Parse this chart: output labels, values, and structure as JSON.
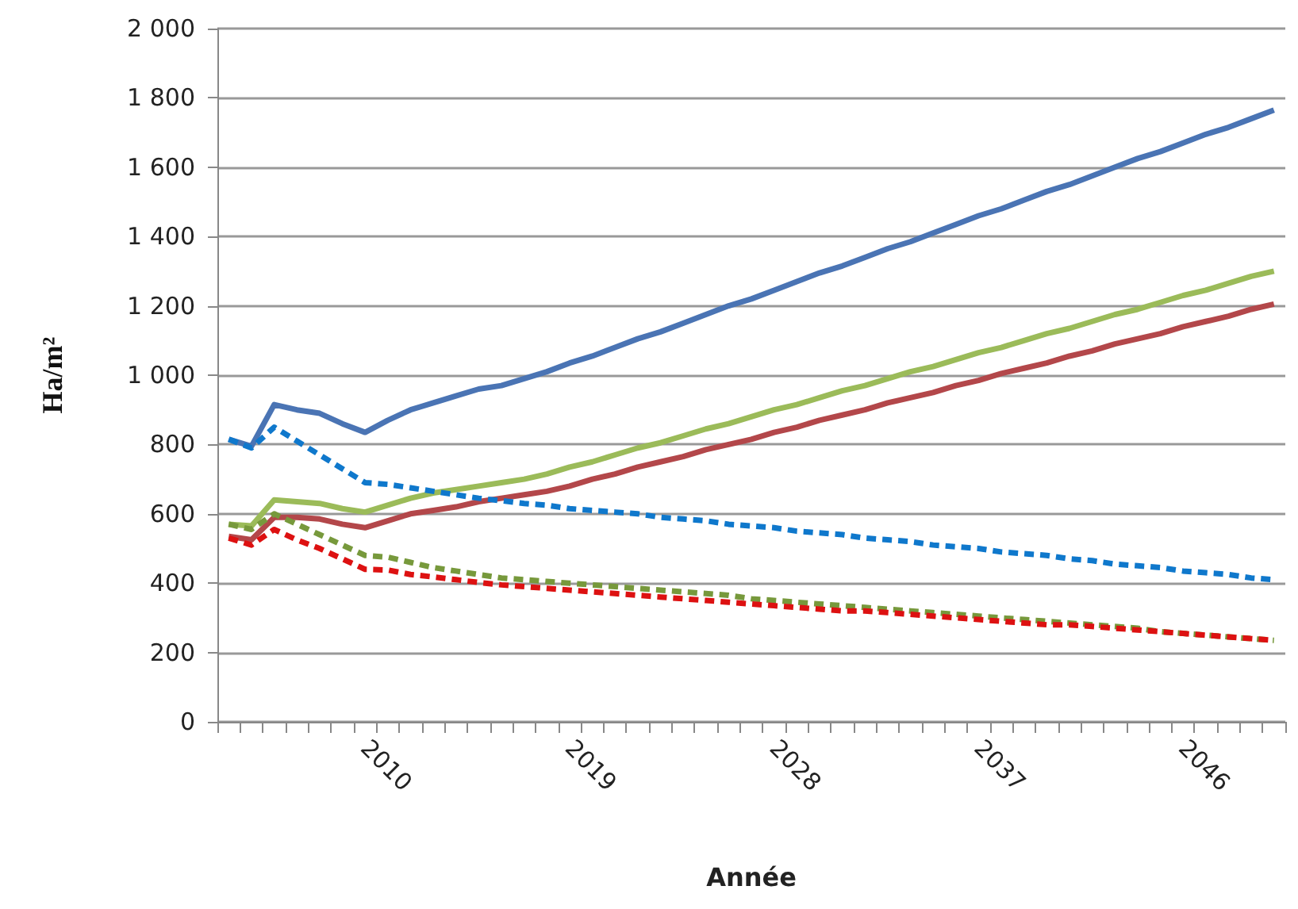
{
  "chart_data": {
    "type": "line",
    "xlabel": "Année",
    "ylabel": "Ha/m²",
    "categories": [
      null,
      null,
      null,
      null,
      null,
      null,
      "2010",
      null,
      null,
      null,
      null,
      null,
      null,
      null,
      null,
      "2019",
      null,
      null,
      null,
      null,
      null,
      null,
      null,
      null,
      "2028",
      null,
      null,
      null,
      null,
      null,
      null,
      null,
      null,
      "2037",
      null,
      null,
      null,
      null,
      null,
      null,
      null,
      null,
      "2046",
      null,
      null,
      null,
      null
    ],
    "ylim": [
      0,
      2000
    ],
    "yticks": [
      0,
      200,
      400,
      600,
      800,
      {
        "value": 1000,
        "label": "1 000"
      },
      {
        "value": 1200,
        "label": "1 200"
      },
      {
        "value": 1400,
        "label": "1 400"
      },
      {
        "value": 1600,
        "label": "1 600"
      },
      {
        "value": 1800,
        "label": "1 800"
      },
      {
        "value": 2000,
        "label": "2 000"
      }
    ],
    "grid": "y",
    "marker": "none",
    "series": [
      {
        "color": "#4a74b4",
        "line_style": "solid",
        "values": [
          815,
          795,
          915,
          900,
          890,
          860,
          835,
          870,
          900,
          920,
          940,
          960,
          970,
          990,
          1010,
          1035,
          1055,
          1080,
          1105,
          1125,
          1150,
          1175,
          1200,
          1220,
          1245,
          1270,
          1295,
          1315,
          1340,
          1365,
          1385,
          1410,
          1435,
          1460,
          1480,
          1505,
          1530,
          1550,
          1575,
          1600,
          1625,
          1645,
          1670,
          1695,
          1715,
          1740,
          1765
        ]
      },
      {
        "color": "#9bbb59",
        "line_style": "solid",
        "values": [
          570,
          565,
          640,
          635,
          630,
          615,
          605,
          625,
          645,
          660,
          670,
          680,
          690,
          700,
          715,
          735,
          750,
          770,
          790,
          805,
          825,
          845,
          860,
          880,
          900,
          915,
          935,
          955,
          970,
          990,
          1010,
          1025,
          1045,
          1065,
          1080,
          1100,
          1120,
          1135,
          1155,
          1175,
          1190,
          1210,
          1230,
          1245,
          1265,
          1285,
          1300
        ]
      },
      {
        "color": "#b3474a",
        "line_style": "solid",
        "values": [
          535,
          525,
          590,
          590,
          585,
          570,
          560,
          580,
          600,
          610,
          620,
          635,
          645,
          655,
          665,
          680,
          700,
          715,
          735,
          750,
          765,
          785,
          800,
          815,
          835,
          850,
          870,
          885,
          900,
          920,
          935,
          950,
          970,
          985,
          1005,
          1020,
          1035,
          1055,
          1070,
          1090,
          1105,
          1120,
          1140,
          1155,
          1170,
          1190,
          1205
        ]
      },
      {
        "color": "#0f78cc",
        "line_style": "dashed",
        "values": [
          815,
          790,
          850,
          810,
          770,
          730,
          690,
          685,
          675,
          665,
          655,
          645,
          638,
          630,
          625,
          615,
          610,
          605,
          600,
          590,
          585,
          580,
          570,
          565,
          560,
          550,
          545,
          540,
          530,
          525,
          520,
          510,
          505,
          500,
          490,
          485,
          480,
          470,
          465,
          455,
          450,
          445,
          435,
          430,
          425,
          415,
          410
        ]
      },
      {
        "color": "#77993c",
        "line_style": "dashed",
        "values": [
          570,
          555,
          600,
          570,
          540,
          510,
          480,
          475,
          460,
          445,
          435,
          425,
          415,
          410,
          405,
          400,
          395,
          390,
          385,
          380,
          375,
          370,
          365,
          355,
          350,
          345,
          340,
          335,
          330,
          325,
          320,
          315,
          310,
          305,
          300,
          295,
          290,
          285,
          280,
          275,
          270,
          260,
          255,
          250,
          245,
          240,
          235
        ]
      },
      {
        "color": "#dd1111",
        "line_style": "dashed",
        "values": [
          530,
          510,
          555,
          525,
          500,
          470,
          440,
          438,
          425,
          418,
          410,
          402,
          395,
          390,
          385,
          380,
          375,
          370,
          365,
          360,
          355,
          350,
          345,
          340,
          335,
          330,
          325,
          320,
          320,
          315,
          310,
          305,
          300,
          295,
          290,
          285,
          280,
          280,
          275,
          270,
          265,
          260,
          255,
          250,
          245,
          240,
          235
        ]
      }
    ]
  }
}
